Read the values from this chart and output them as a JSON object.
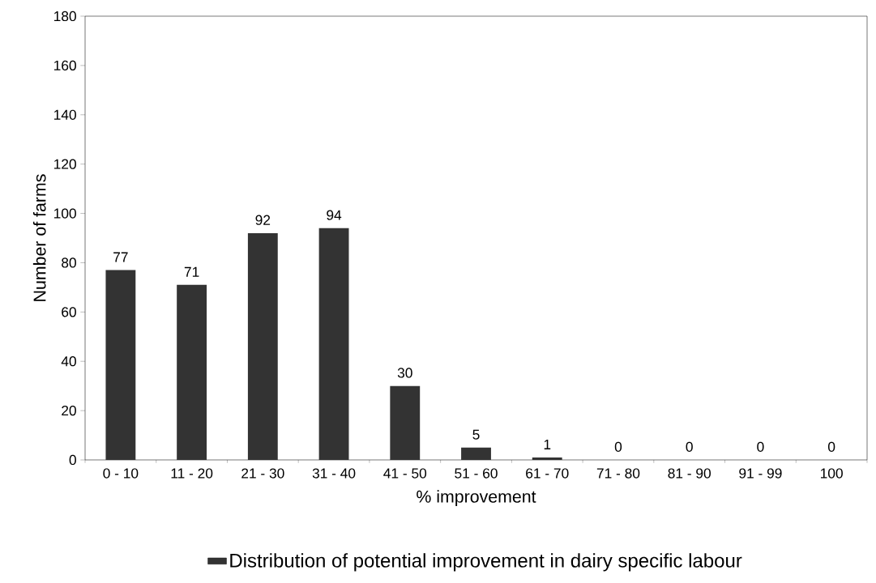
{
  "chart_data": {
    "type": "bar",
    "xlabel": "% improvement",
    "ylabel": "Number of farms",
    "categories": [
      "0 - 10",
      "11 - 20",
      "21 - 30",
      "31 - 40",
      "41 - 50",
      "51 - 60",
      "61 - 70",
      "71 - 80",
      "81 - 90",
      "91 - 99",
      "100"
    ],
    "series": [
      {
        "name": "Distribution of potential improvement in dairy specific labour",
        "color": "#333333",
        "values": [
          77,
          71,
          92,
          94,
          30,
          5,
          1,
          0,
          0,
          0,
          0
        ]
      }
    ],
    "ylim": [
      0,
      180
    ],
    "yticks": [
      0,
      20,
      40,
      60,
      80,
      100,
      120,
      140,
      160,
      180
    ],
    "data_labels": true,
    "legend": "bottom"
  }
}
